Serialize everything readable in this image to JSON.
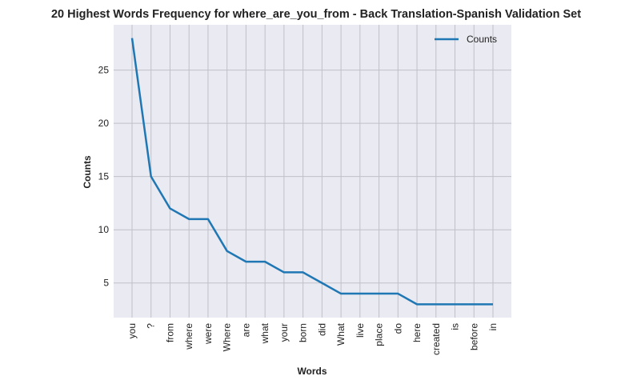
{
  "chart_data": {
    "type": "line",
    "title": "20 Highest Words Frequency for where_are_you_from - Back Translation-Spanish Validation Set",
    "xlabel": "Words",
    "ylabel": "Counts",
    "categories": [
      "you",
      "?",
      "from",
      "where",
      "were",
      "Where",
      "are",
      "what",
      "your",
      "born",
      "did",
      "What",
      "live",
      "place",
      "do",
      "here",
      "created",
      "is",
      "before",
      "in"
    ],
    "series": [
      {
        "name": "Counts",
        "values": [
          28,
          15,
          12,
          11,
          11,
          8,
          7,
          7,
          6,
          6,
          5,
          4,
          4,
          4,
          4,
          3,
          3,
          3,
          3,
          3
        ],
        "color": "#1f77b4"
      }
    ],
    "yticks": [
      5,
      10,
      15,
      20,
      25
    ],
    "ylim": [
      1.75,
      29.25
    ],
    "grid": true,
    "legend": "top-right",
    "colors": {
      "background": "#eaeaf2",
      "grid": "#c0c0c8",
      "line": "#1f77b4"
    }
  }
}
